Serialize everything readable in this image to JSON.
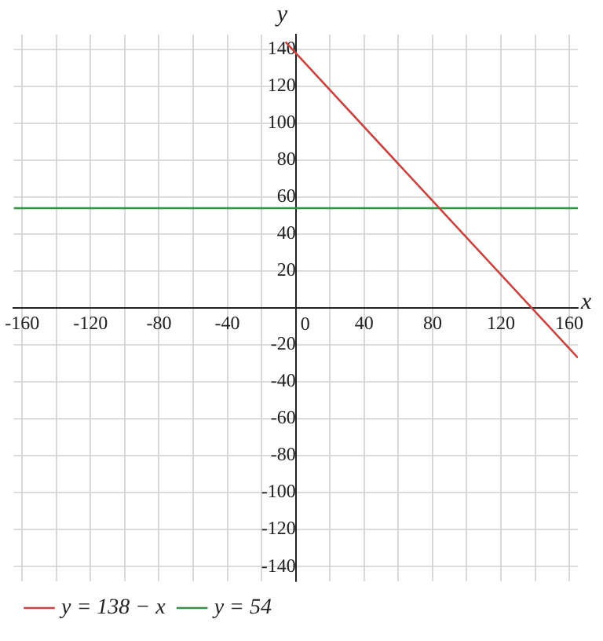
{
  "chart_data": {
    "type": "line",
    "xlabel": "x",
    "ylabel": "y",
    "xlim": [
      -165,
      165
    ],
    "ylim": [
      -148,
      148
    ],
    "xticks": [
      -160,
      {
        "value": -140,
        "label": null
      },
      -120,
      {
        "value": -100,
        "label": null
      },
      -80,
      {
        "value": -60,
        "label": null
      },
      -40,
      {
        "value": -20,
        "label": null
      },
      0,
      {
        "value": 20,
        "label": null
      },
      40,
      {
        "value": 60,
        "label": null
      },
      80,
      {
        "value": 100,
        "label": null
      },
      120,
      {
        "value": 140,
        "label": null
      },
      160
    ],
    "yticks": [
      -140,
      -120,
      -100,
      -80,
      -60,
      -40,
      -20,
      {
        "value": 0,
        "label": null
      },
      20,
      40,
      60,
      80,
      100,
      120,
      140
    ],
    "grid": true,
    "legend": "bottom",
    "marker": "none",
    "line_style": "solid",
    "series": [
      {
        "name": "y = 138 − x",
        "color": "#c74440",
        "x": [
          -6,
          165
        ],
        "values": [
          144,
          -27
        ]
      },
      {
        "name": "y = 54",
        "color": "#388c46",
        "x": [
          -165,
          165
        ],
        "values": [
          54,
          54
        ]
      }
    ]
  }
}
